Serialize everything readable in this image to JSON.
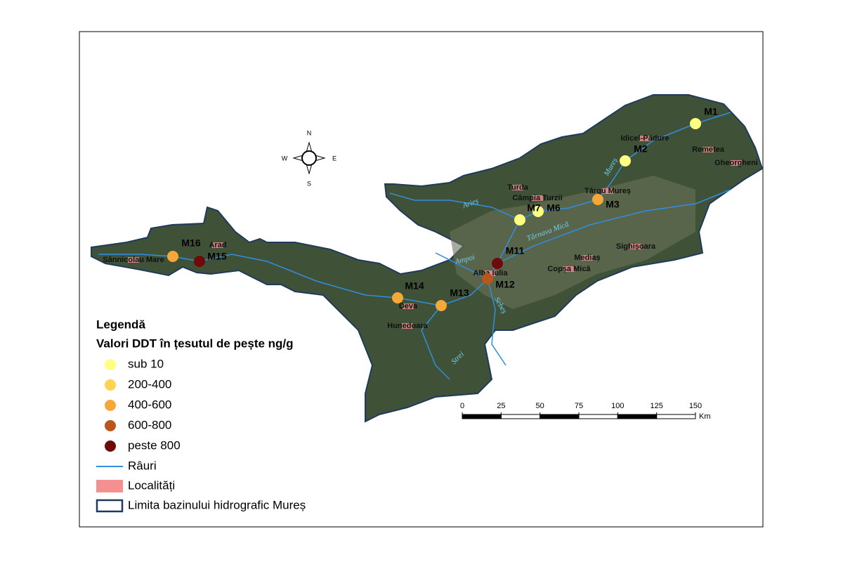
{
  "map": {
    "compass": {
      "n": "N",
      "e": "E",
      "s": "S",
      "w": "W"
    },
    "legend": {
      "title": "Legendă",
      "subtitle": "Valori DDT în țesutul de pește ng/g",
      "classes": [
        {
          "label": "sub 10",
          "color": "#ffff80"
        },
        {
          "label": "200-400",
          "color": "#ffd250"
        },
        {
          "label": "400-600",
          "color": "#f5a838"
        },
        {
          "label": "600-800",
          "color": "#b8561c"
        },
        {
          "label": "peste 800",
          "color": "#6e0a0a"
        }
      ],
      "rivers": "Râuri",
      "localities": "Localități",
      "boundary": "Limita bazinului hidrografic Mureș"
    },
    "scale_bar": {
      "ticks": [
        0,
        25,
        50,
        75,
        100,
        125,
        150
      ],
      "unit": "Km"
    },
    "stations": [
      {
        "label": "M1",
        "color": "#ffff80"
      },
      {
        "label": "M2",
        "color": "#ffff80"
      },
      {
        "label": "M3",
        "color": "#f5a838"
      },
      {
        "label": "M6",
        "color": "#ffff80"
      },
      {
        "label": "M7",
        "color": "#ffff80"
      },
      {
        "label": "M11",
        "color": "#6e0a0a"
      },
      {
        "label": "M12",
        "color": "#b8561c"
      },
      {
        "label": "M13",
        "color": "#f5a838"
      },
      {
        "label": "M14",
        "color": "#f5a838"
      },
      {
        "label": "M15",
        "color": "#6e0a0a"
      },
      {
        "label": "M16",
        "color": "#f5a838"
      }
    ],
    "towns": [
      "Idicel-Pădure",
      "Remetea",
      "Gheorgheni",
      "Turda",
      "Câmpia Turzii",
      "Târgu Mureș",
      "Mediaș",
      "Sighișoara",
      "Copșa Mică",
      "Alba Iulia",
      "Deva",
      "Hunedoara",
      "Arad",
      "Sânnicolau Mare"
    ],
    "rivers": [
      "Mureș",
      "Târnava Mică",
      "Arieș",
      "Ampoi",
      "Sebeș",
      "Strei"
    ]
  }
}
